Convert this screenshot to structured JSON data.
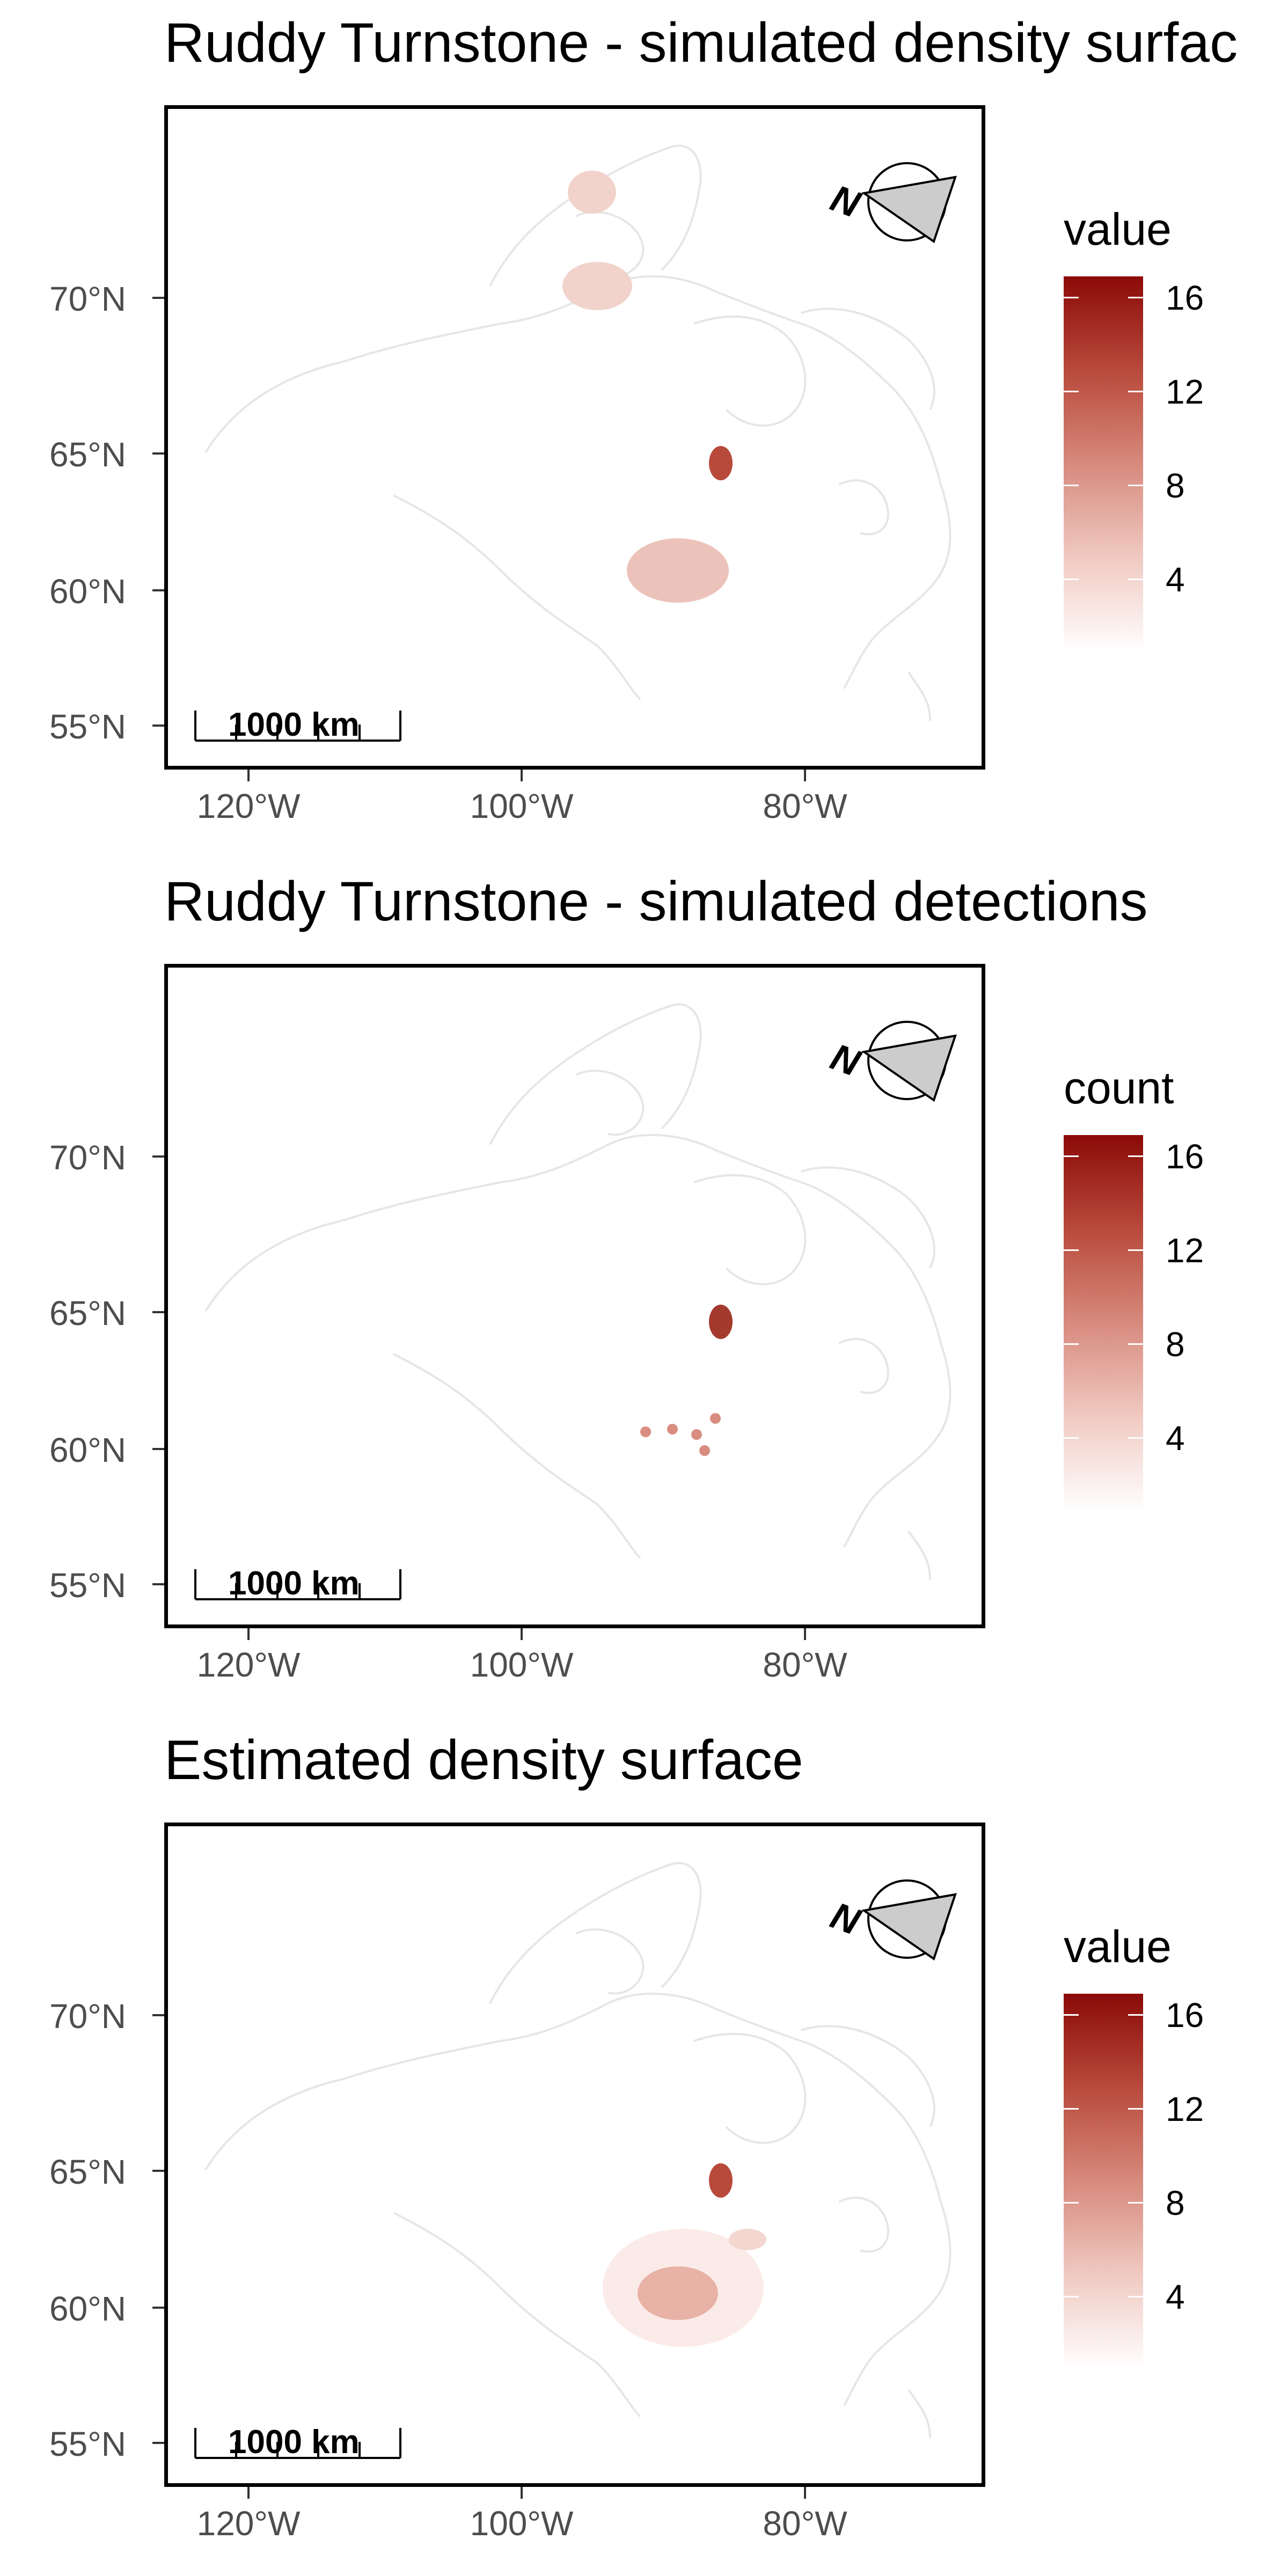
{
  "panels": [
    {
      "title": "Ruddy Turnstone - simulated density surfac",
      "legend_title": "value",
      "legend_ticks": [
        "16",
        "12",
        "8",
        "4"
      ],
      "scale_label": "1000 km",
      "north_label": "N"
    },
    {
      "title": "Ruddy Turnstone - simulated detections",
      "legend_title": "count",
      "legend_ticks": [
        "16",
        "12",
        "8",
        "4"
      ],
      "scale_label": "1000 km",
      "north_label": "N"
    },
    {
      "title": "Estimated density surface",
      "legend_title": "value",
      "legend_ticks": [
        "16",
        "12",
        "8",
        "4"
      ],
      "scale_label": "1000 km",
      "north_label": "N"
    }
  ],
  "y_axis_labels": [
    "70°N",
    "65°N",
    "60°N",
    "55°N"
  ],
  "x_axis_labels": [
    "120°W",
    "100°W",
    "80°W"
  ],
  "colors": {
    "scale_high": "#8b0a07",
    "scale_low": "#ffffff",
    "coastline": "#e6e6e6"
  },
  "icons": [
    "north-arrow-icon",
    "scale-bar"
  ]
}
